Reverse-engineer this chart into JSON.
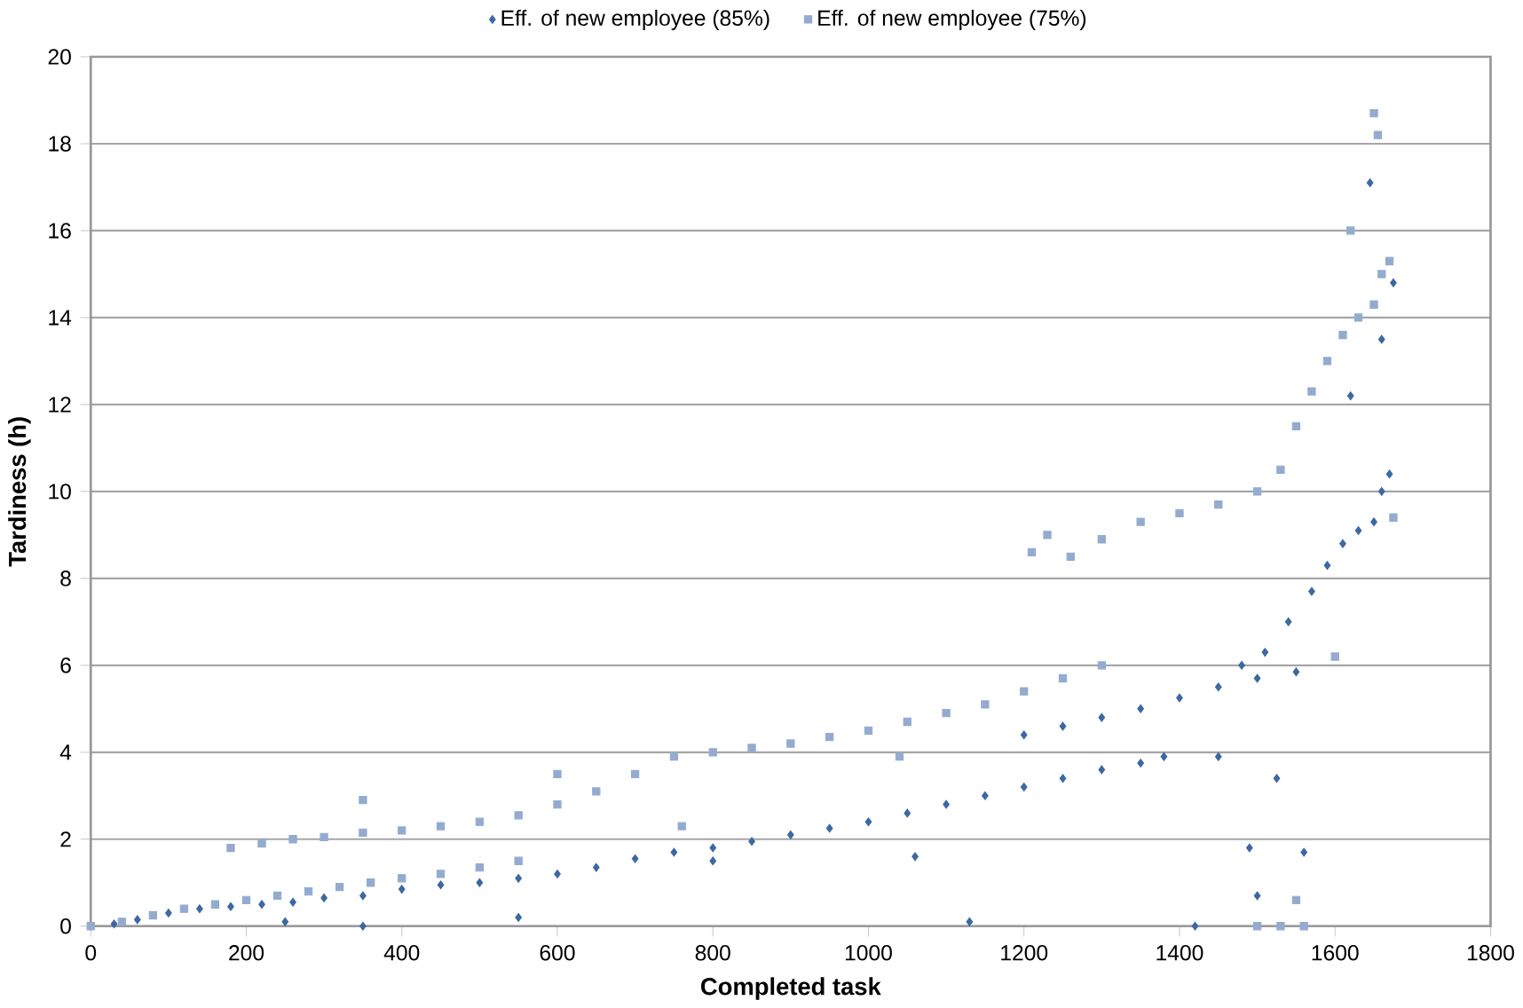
{
  "chart_data": {
    "type": "scatter",
    "xlabel": "Completed task",
    "ylabel": "Tardiness (h)",
    "xlim": [
      0,
      1800
    ],
    "ylim": [
      0,
      20
    ],
    "xticks": [
      0,
      200,
      400,
      600,
      800,
      1000,
      1200,
      1400,
      1600,
      1800
    ],
    "yticks": [
      0,
      2,
      4,
      6,
      8,
      10,
      12,
      14,
      16,
      18,
      20
    ],
    "grid": "y",
    "legend": "top",
    "series": [
      {
        "name": "Eff. of new employee (85%)",
        "color": "#3c68a3",
        "marker": "diamond",
        "x": [
          0,
          30,
          60,
          100,
          140,
          180,
          220,
          260,
          300,
          350,
          400,
          450,
          500,
          550,
          600,
          650,
          700,
          750,
          800,
          850,
          900,
          950,
          1000,
          1050,
          1100,
          1150,
          1200,
          1250,
          1300,
          1350,
          1380,
          1200,
          1250,
          1300,
          1350,
          1400,
          1450,
          1500,
          1550,
          1480,
          1510,
          1540,
          1570,
          1590,
          1610,
          1630,
          1650,
          1660,
          1670,
          1675,
          1645,
          1130,
          1420,
          1525,
          1490,
          1500,
          1560,
          1450,
          250,
          350,
          550,
          800,
          1060,
          1620,
          1660
        ],
        "values": [
          0,
          0.05,
          0.15,
          0.3,
          0.4,
          0.45,
          0.5,
          0.55,
          0.65,
          0.7,
          0.85,
          0.95,
          1.0,
          1.1,
          1.2,
          1.35,
          1.55,
          1.7,
          1.8,
          1.95,
          2.1,
          2.25,
          2.4,
          2.6,
          2.8,
          3.0,
          3.2,
          3.4,
          3.6,
          3.75,
          3.9,
          4.4,
          4.6,
          4.8,
          5.0,
          5.25,
          5.5,
          5.7,
          5.85,
          6.0,
          6.3,
          7.0,
          7.7,
          8.3,
          8.8,
          9.1,
          9.3,
          10.0,
          10.4,
          14.8,
          17.1,
          0.1,
          0,
          3.4,
          1.8,
          0.7,
          1.7,
          3.9,
          0.1,
          0,
          0.2,
          1.5,
          1.6,
          12.2,
          13.5
        ]
      },
      {
        "name": "Eff. of new employee (75%)",
        "color": "#94abd0",
        "marker": "square",
        "x": [
          0,
          40,
          80,
          120,
          160,
          200,
          240,
          280,
          320,
          360,
          400,
          450,
          500,
          550,
          180,
          220,
          260,
          300,
          350,
          400,
          450,
          500,
          550,
          600,
          650,
          700,
          750,
          800,
          850,
          900,
          950,
          1000,
          1050,
          1100,
          1150,
          1200,
          1250,
          1300,
          1210,
          1230,
          1260,
          1300,
          1350,
          1400,
          1450,
          1500,
          1530,
          1550,
          1570,
          1590,
          1610,
          1630,
          1650,
          1660,
          1670,
          1675,
          1650,
          1655,
          1500,
          1530,
          1560,
          1600,
          1620,
          350,
          600,
          760,
          1040,
          1550
        ],
        "values": [
          0,
          0.1,
          0.25,
          0.4,
          0.5,
          0.6,
          0.7,
          0.8,
          0.9,
          1.0,
          1.1,
          1.2,
          1.35,
          1.5,
          1.8,
          1.9,
          2.0,
          2.05,
          2.15,
          2.2,
          2.3,
          2.4,
          2.55,
          2.8,
          3.1,
          3.5,
          3.9,
          4.0,
          4.1,
          4.2,
          4.35,
          4.5,
          4.7,
          4.9,
          5.1,
          5.4,
          5.7,
          6.0,
          8.6,
          9.0,
          8.5,
          8.9,
          9.3,
          9.5,
          9.7,
          10.0,
          10.5,
          11.5,
          12.3,
          13.0,
          13.6,
          14.0,
          14.3,
          15.0,
          15.3,
          9.4,
          18.7,
          18.2,
          0,
          0,
          0,
          6.2,
          16.0,
          2.9,
          3.5,
          2.3,
          3.9,
          0.6
        ]
      }
    ]
  }
}
